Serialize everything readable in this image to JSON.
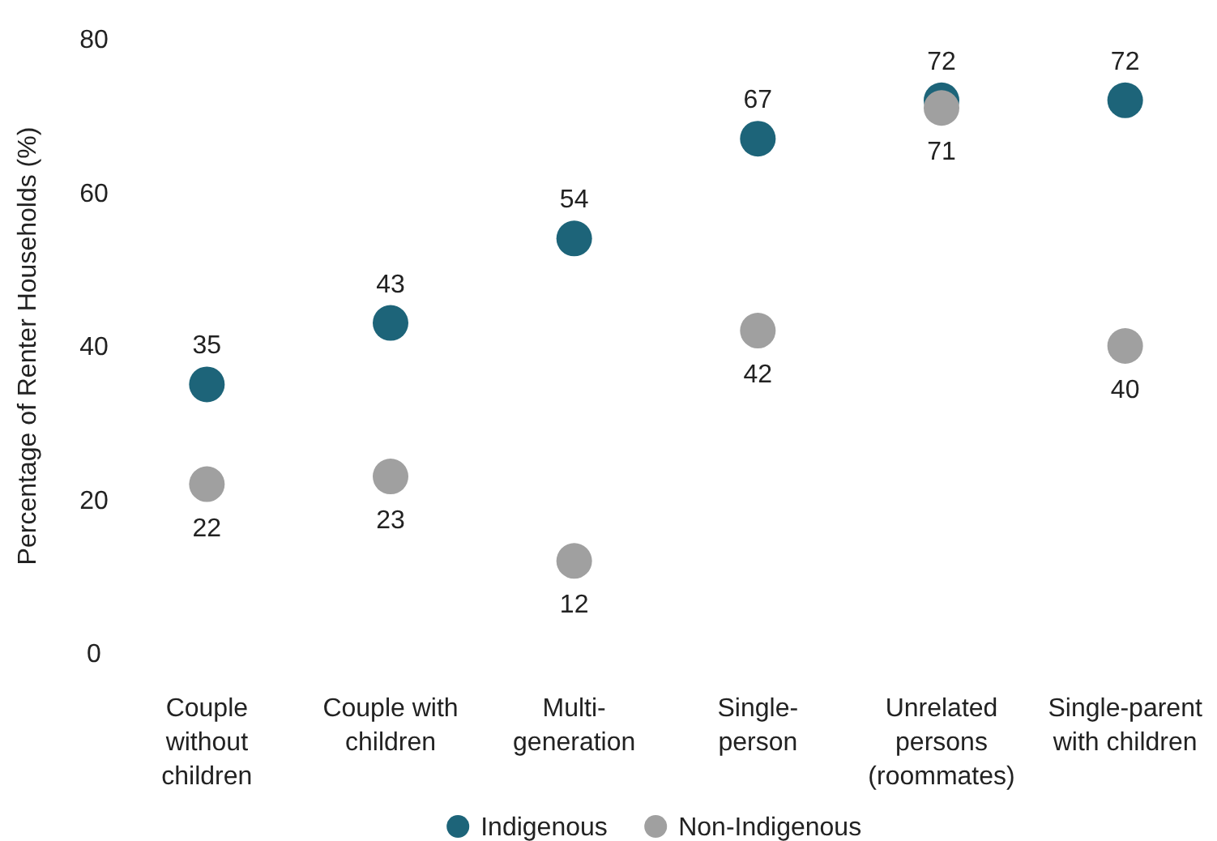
{
  "chart_data": {
    "type": "scatter",
    "ylabel": "Percentage of Renter Households (%)",
    "categories": [
      "Couple\nwithout\nchildren",
      "Couple with\nchildren",
      "Multi-\ngeneration",
      "Single-\nperson",
      "Unrelated\npersons\n(roommates)",
      "Single-parent\nwith children"
    ],
    "series": [
      {
        "name": "Indigenous",
        "color": "#1d6479",
        "values": [
          35,
          43,
          54,
          67,
          72,
          72
        ]
      },
      {
        "name": "Non-Indigenous",
        "color": "#a0a0a0",
        "values": [
          22,
          23,
          12,
          42,
          71,
          40
        ]
      }
    ],
    "ylim": [
      0,
      80
    ],
    "yticks": [
      0,
      20,
      40,
      60,
      80
    ],
    "grid": false,
    "legend": "bottom",
    "marker": "circle",
    "data_labels": true
  }
}
